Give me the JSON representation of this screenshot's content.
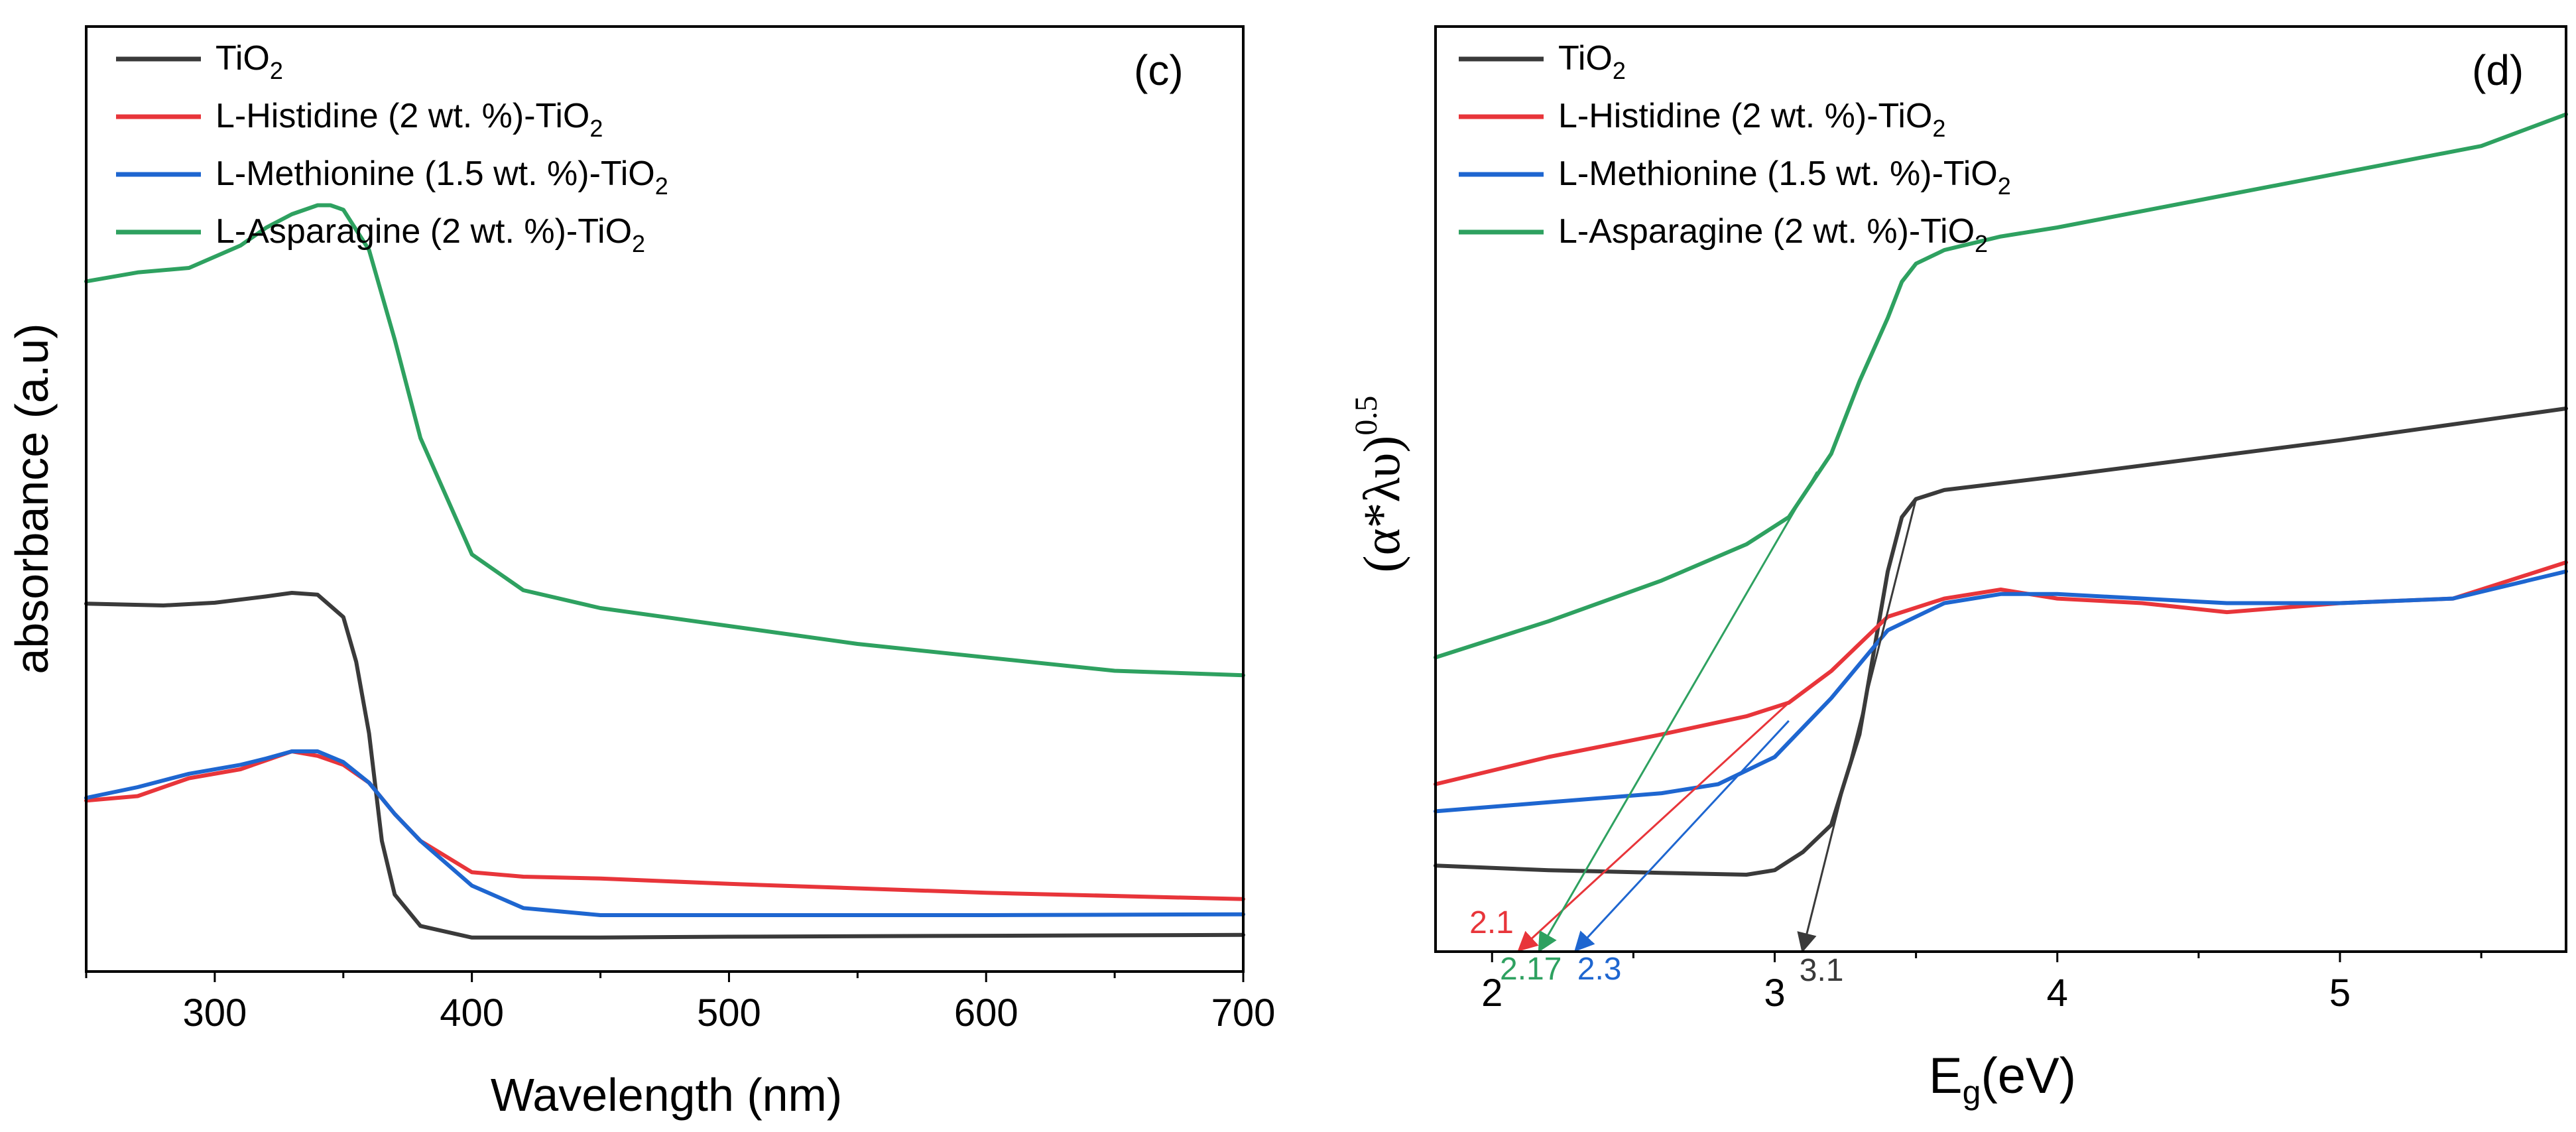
{
  "colors": {
    "TiO2": "#3a3a3a",
    "histidine": "#e8353a",
    "methionine": "#1e66d0",
    "asparagine": "#2ea160"
  },
  "chart_data": [
    {
      "type": "line",
      "panel_label": "(c)",
      "xlabel": "Wavelength (nm)",
      "ylabel": "absorbance (a.u)",
      "xlim": [
        250,
        700
      ],
      "ylim": [
        0,
        1
      ],
      "x_ticks": [
        300,
        400,
        500,
        600,
        700
      ],
      "x_tick_labels": [
        "300",
        "400",
        "500",
        "600",
        "700"
      ],
      "legend": [
        {
          "key": "TiO2",
          "base": "TiO",
          "sub": "2"
        },
        {
          "key": "histidine",
          "base": "L-Histidine (2 wt. %)-TiO",
          "sub": "2"
        },
        {
          "key": "methionine",
          "base": "L-Methionine (1.5 wt. %)-TiO",
          "sub": "2"
        },
        {
          "key": "asparagine",
          "base": "L-Asparagine (2 wt. %)-TiO",
          "sub": "2"
        }
      ],
      "series": [
        {
          "key": "TiO2",
          "name": "TiO2",
          "x": [
            250,
            280,
            300,
            320,
            330,
            340,
            350,
            355,
            360,
            365,
            370,
            380,
            400,
            450,
            500,
            600,
            700
          ],
          "y": [
            0.385,
            0.383,
            0.386,
            0.393,
            0.397,
            0.395,
            0.37,
            0.32,
            0.24,
            0.12,
            0.06,
            0.025,
            0.012,
            0.012,
            0.013,
            0.014,
            0.015
          ]
        },
        {
          "key": "histidine",
          "name": "L-Histidine (2 wt. %)-TiO2",
          "x": [
            250,
            270,
            290,
            310,
            320,
            330,
            340,
            350,
            360,
            370,
            380,
            400,
            420,
            450,
            500,
            600,
            700
          ],
          "y": [
            0.165,
            0.17,
            0.19,
            0.2,
            0.21,
            0.22,
            0.215,
            0.205,
            0.185,
            0.15,
            0.12,
            0.085,
            0.08,
            0.078,
            0.072,
            0.062,
            0.055
          ]
        },
        {
          "key": "methionine",
          "name": "L-Methionine (1.5 wt. %)-TiO2",
          "x": [
            250,
            270,
            290,
            310,
            320,
            330,
            340,
            350,
            360,
            370,
            380,
            400,
            420,
            450,
            500,
            600,
            700
          ],
          "y": [
            0.168,
            0.18,
            0.195,
            0.205,
            0.212,
            0.22,
            0.22,
            0.208,
            0.185,
            0.15,
            0.12,
            0.07,
            0.045,
            0.037,
            0.037,
            0.037,
            0.038
          ]
        },
        {
          "key": "asparagine",
          "name": "L-Asparagine (2 wt. %)-TiO2",
          "x": [
            250,
            270,
            290,
            310,
            320,
            330,
            340,
            345,
            350,
            360,
            370,
            380,
            400,
            420,
            450,
            500,
            550,
            600,
            650,
            700
          ],
          "y": [
            0.745,
            0.755,
            0.76,
            0.785,
            0.805,
            0.82,
            0.83,
            0.83,
            0.825,
            0.78,
            0.68,
            0.57,
            0.44,
            0.4,
            0.38,
            0.36,
            0.34,
            0.325,
            0.31,
            0.305
          ]
        }
      ]
    },
    {
      "type": "line",
      "panel_label": "(d)",
      "xlabel_base": "E",
      "xlabel_sub": "g",
      "xlabel_tail": "(eV)",
      "ylabel_base": "(α*λυ)",
      "ylabel_sup": "0.5",
      "xlim": [
        1.8,
        5.8
      ],
      "ylim": [
        0,
        1
      ],
      "x_ticks": [
        2,
        3,
        4,
        5
      ],
      "x_tick_labels": [
        "2",
        "3",
        "4",
        "5"
      ],
      "minor_ticks": [
        2.5,
        3.5,
        4.5,
        5.5
      ],
      "legend": [
        {
          "key": "TiO2",
          "base": "TiO",
          "sub": "2"
        },
        {
          "key": "histidine",
          "base": "L-Histidine (2 wt. %)-TiO",
          "sub": "2"
        },
        {
          "key": "methionine",
          "base": "L-Methionine (1.5 wt. %)-TiO",
          "sub": "2"
        },
        {
          "key": "asparagine",
          "base": "L-Asparagine (2 wt. %)-TiO",
          "sub": "2"
        }
      ],
      "series": [
        {
          "key": "TiO2",
          "name": "TiO2",
          "x": [
            1.8,
            2.2,
            2.6,
            2.9,
            3.0,
            3.1,
            3.2,
            3.3,
            3.35,
            3.4,
            3.45,
            3.5,
            3.6,
            4.0,
            5.0,
            5.8
          ],
          "y": [
            0.095,
            0.09,
            0.087,
            0.085,
            0.09,
            0.11,
            0.14,
            0.24,
            0.33,
            0.42,
            0.48,
            0.5,
            0.51,
            0.525,
            0.565,
            0.6
          ]
        },
        {
          "key": "histidine",
          "name": "L-Histidine (2 wt. %)-TiO2",
          "x": [
            1.8,
            2.2,
            2.6,
            2.9,
            3.05,
            3.2,
            3.4,
            3.6,
            3.8,
            4.0,
            4.3,
            4.6,
            5.0,
            5.4,
            5.8
          ],
          "y": [
            0.185,
            0.215,
            0.24,
            0.26,
            0.275,
            0.31,
            0.37,
            0.39,
            0.4,
            0.39,
            0.385,
            0.375,
            0.385,
            0.39,
            0.43
          ]
        },
        {
          "key": "methionine",
          "name": "L-Methionine (1.5 wt. %)-TiO2",
          "x": [
            1.8,
            2.2,
            2.6,
            2.8,
            3.0,
            3.2,
            3.4,
            3.6,
            3.8,
            4.0,
            4.3,
            4.6,
            5.0,
            5.4,
            5.8
          ],
          "y": [
            0.155,
            0.165,
            0.175,
            0.185,
            0.215,
            0.28,
            0.355,
            0.385,
            0.395,
            0.395,
            0.39,
            0.385,
            0.385,
            0.39,
            0.42
          ]
        },
        {
          "key": "asparagine",
          "name": "L-Asparagine (2 wt. %)-TiO2",
          "x": [
            1.8,
            2.2,
            2.6,
            2.9,
            3.05,
            3.2,
            3.3,
            3.4,
            3.45,
            3.5,
            3.6,
            3.8,
            4.0,
            4.5,
            5.0,
            5.5,
            5.8
          ],
          "y": [
            0.325,
            0.365,
            0.41,
            0.45,
            0.48,
            0.55,
            0.63,
            0.7,
            0.74,
            0.76,
            0.775,
            0.79,
            0.8,
            0.83,
            0.86,
            0.89,
            0.925
          ]
        }
      ],
      "arrows": [
        {
          "key": "histidine",
          "label": "2.1",
          "from_x": 3.05,
          "from_y": 0.275,
          "to_x": 2.1,
          "to_y": 0.0
        },
        {
          "key": "asparagine",
          "label": "2.17",
          "from_x": 3.15,
          "from_y": 0.53,
          "to_x": 2.17,
          "to_y": 0.0
        },
        {
          "key": "methionine",
          "label": "2.3",
          "from_x": 3.05,
          "from_y": 0.255,
          "to_x": 2.3,
          "to_y": 0.0
        },
        {
          "key": "TiO2",
          "label": "3.1",
          "from_x": 3.5,
          "from_y": 0.5,
          "to_x": 3.1,
          "to_y": 0.0
        }
      ]
    }
  ]
}
